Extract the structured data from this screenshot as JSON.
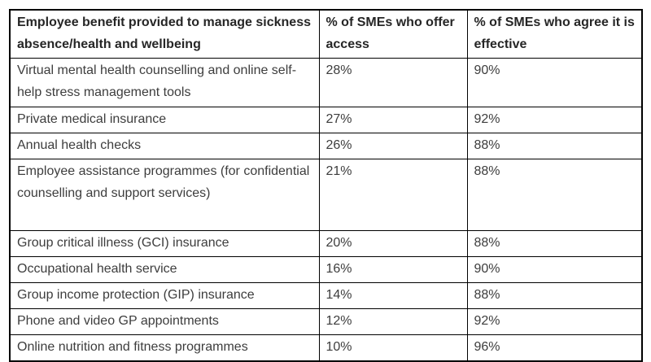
{
  "colors": {
    "border": "#000000",
    "header_text": "#262626",
    "body_text": "#3d3d3d",
    "background": "#ffffff"
  },
  "chart_data": {
    "type": "table",
    "title": "",
    "columns": [
      "Employee benefit provided to manage sickness absence/health and wellbeing",
      "% of SMEs who offer access",
      "% of SMEs who agree it is effective"
    ],
    "rows": [
      [
        "Virtual mental health counselling and online self-help stress management tools",
        "28%",
        "90%"
      ],
      [
        "Private medical insurance",
        "27%",
        "92%"
      ],
      [
        "Annual health checks",
        "26%",
        "88%"
      ],
      [
        "Employee assistance programmes (for confidential counselling and support services)",
        "21%",
        "88%"
      ],
      [
        "Group critical illness (GCI) insurance",
        "20%",
        "88%"
      ],
      [
        "Occupational health service",
        "16%",
        "90%"
      ],
      [
        "Group income protection (GIP) insurance",
        "14%",
        "88%"
      ],
      [
        "Phone and video GP appointments",
        "12%",
        "92%"
      ],
      [
        "Online nutrition and fitness programmes",
        "10%",
        "96%"
      ]
    ]
  }
}
